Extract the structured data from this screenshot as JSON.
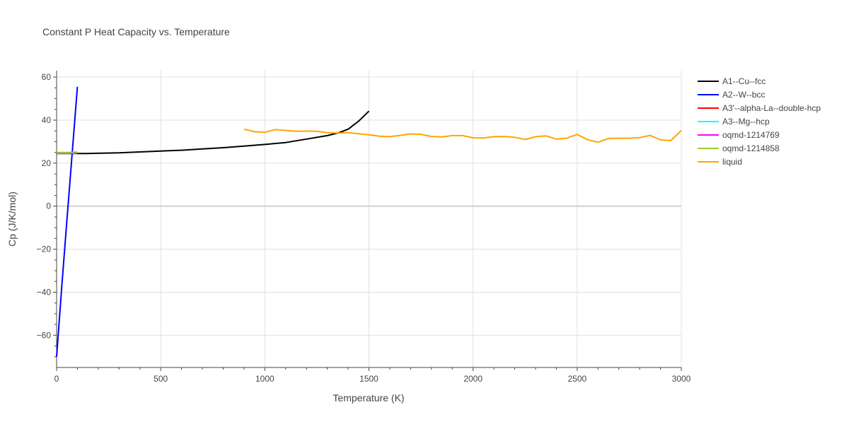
{
  "chart_data": {
    "type": "line",
    "title": "Constant P Heat Capacity vs. Temperature",
    "xlabel": "Temperature (K)",
    "ylabel": "Cp (J/K/mol)",
    "xlim": [
      0,
      3000
    ],
    "ylim": [
      -75,
      63
    ],
    "xticks": [
      0,
      500,
      1000,
      1500,
      2000,
      2500,
      3000
    ],
    "yticks": [
      -60,
      -40,
      -20,
      0,
      20,
      40,
      60
    ],
    "grid": true,
    "legend_position": "right",
    "series": [
      {
        "name": "A1--Cu--fcc",
        "color": "#000000",
        "x": [
          0,
          50,
          100,
          150,
          200,
          300,
          400,
          500,
          600,
          700,
          800,
          900,
          1000,
          1100,
          1200,
          1300,
          1350,
          1400,
          1450,
          1500
        ],
        "y": [
          24.5,
          24.5,
          24.5,
          24.5,
          24.6,
          24.8,
          25.2,
          25.6,
          26.0,
          26.6,
          27.2,
          27.9,
          28.7,
          29.6,
          31.2,
          32.8,
          34.0,
          35.8,
          39.5,
          44.2
        ]
      },
      {
        "name": "A2--W--bcc",
        "color": "#0000ff",
        "x": [
          0,
          25,
          50,
          75,
          100
        ],
        "y": [
          -70,
          -37,
          -6,
          25,
          55.5
        ]
      },
      {
        "name": "A3'--alpha-La--double-hcp",
        "color": "#ff0000",
        "x": [
          0,
          50,
          100
        ],
        "y": [
          24.7,
          24.7,
          24.8
        ]
      },
      {
        "name": "A3--Mg--hcp",
        "color": "#00ffff",
        "x": [
          0,
          50,
          100
        ],
        "y": [
          24.6,
          24.6,
          24.7
        ]
      },
      {
        "name": "oqmd-1214769",
        "color": "#ff00ff",
        "x": [
          0,
          50,
          100
        ],
        "y": [
          24.8,
          24.8,
          24.9
        ]
      },
      {
        "name": "oqmd-1214858",
        "color": "#9acd32",
        "x": [
          0,
          50,
          100
        ],
        "y": [
          25.0,
          25.0,
          25.1
        ]
      },
      {
        "name": "liquid",
        "color": "#ffa500",
        "x": [
          900,
          950,
          1000,
          1050,
          1100,
          1150,
          1200,
          1250,
          1300,
          1350,
          1400,
          1450,
          1500,
          1550,
          1600,
          1650,
          1700,
          1750,
          1800,
          1850,
          1900,
          1950,
          2000,
          2050,
          2100,
          2150,
          2200,
          2250,
          2300,
          2350,
          2400,
          2450,
          2500,
          2550,
          2600,
          2650,
          2700,
          2750,
          2800,
          2850,
          2900,
          2950,
          3000
        ],
        "y": [
          35.8,
          34.6,
          34.3,
          35.6,
          35.2,
          34.8,
          34.9,
          34.8,
          34.2,
          34.0,
          34.2,
          33.7,
          33.2,
          32.5,
          32.3,
          32.9,
          33.6,
          33.4,
          32.4,
          32.2,
          32.8,
          32.8,
          31.8,
          31.7,
          32.3,
          32.4,
          32.0,
          31.0,
          32.3,
          32.7,
          31.2,
          31.6,
          33.4,
          30.9,
          29.7,
          31.5,
          31.6,
          31.6,
          31.9,
          32.9,
          30.8,
          30.5,
          35.2
        ]
      }
    ]
  }
}
